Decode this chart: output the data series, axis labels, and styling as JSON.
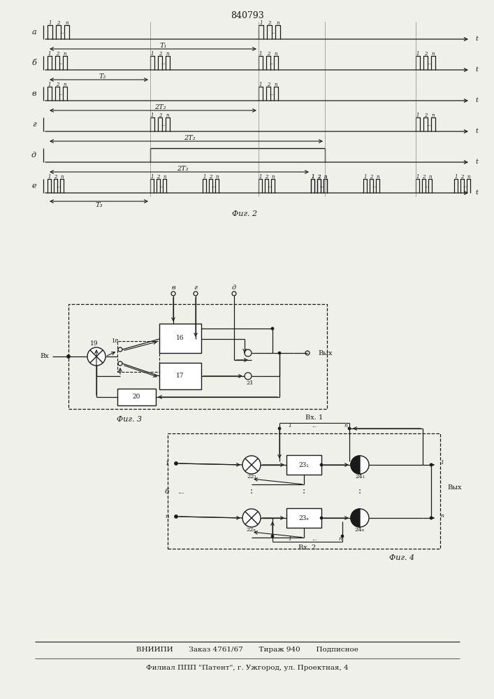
{
  "title": "840793",
  "fig2_label": "Фиг. 2",
  "fig3_label": "Фиг. 3",
  "fig4_label": "Фиг. 4",
  "bottom_line1": "ВНИИПИ       Заказ 4761/67       Тираж 940       Подписное",
  "bottom_line2": "Филиал ППП \"Патент\", г. Ужгород, ул. Проектная, 4",
  "bg_color": "#f0f0eb",
  "line_color": "#1a1a1a"
}
